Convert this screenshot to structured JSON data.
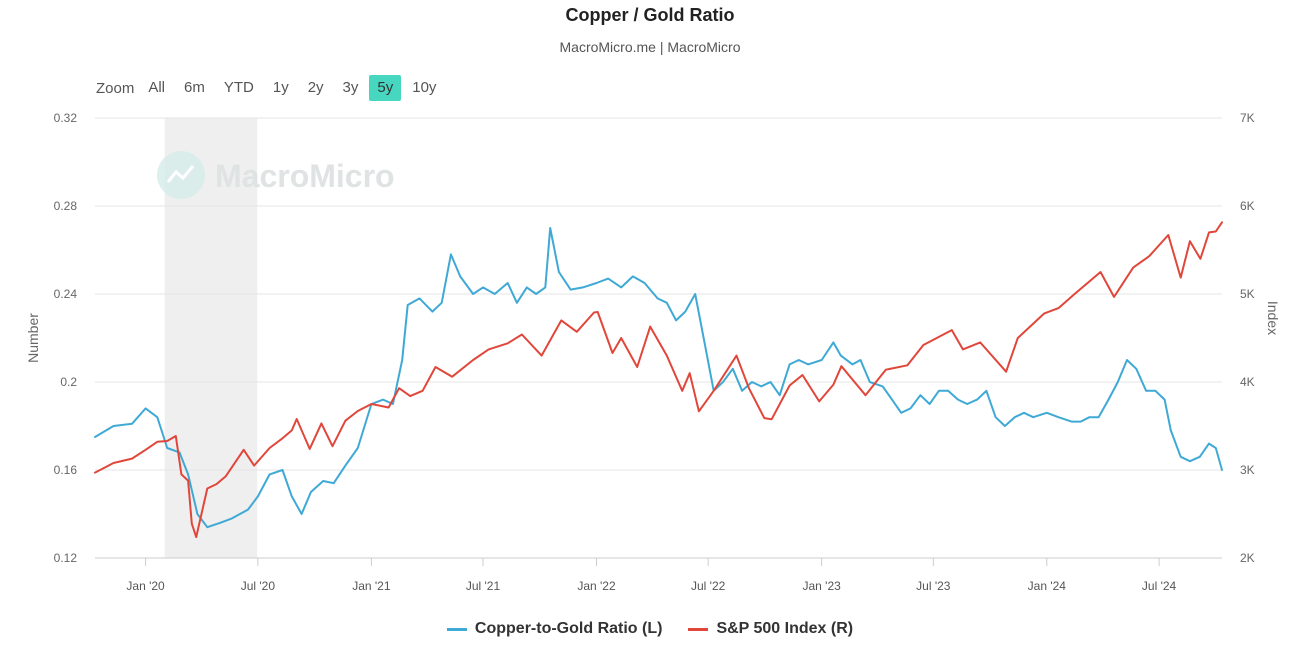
{
  "header": {
    "title": "Copper / Gold Ratio",
    "subtitle": "MacroMicro.me | MacroMicro"
  },
  "zoom": {
    "label": "Zoom",
    "buttons": [
      "All",
      "6m",
      "YTD",
      "1y",
      "2y",
      "3y",
      "5y",
      "10y"
    ],
    "active": "5y"
  },
  "watermark": "MacroMicro",
  "colors": {
    "copper_gold": "#3fa9d5",
    "sp500": "#e0473a",
    "active_zoom": "#47d7c0",
    "recession_band": "#efefef"
  },
  "chart_data": {
    "type": "line",
    "x_ticks": [
      "Jan '20",
      "Jul '20",
      "Jan '21",
      "Jul '21",
      "Jan '22",
      "Jul '22",
      "Jan '23",
      "Jul '23",
      "Jan '24",
      "Jul '24"
    ],
    "x_tick_dates": [
      "2020-01-01",
      "2020-07-01",
      "2021-01-01",
      "2021-07-01",
      "2022-01-01",
      "2022-07-01",
      "2023-01-01",
      "2023-07-01",
      "2024-01-01",
      "2024-07-01"
    ],
    "x_range": [
      "2019-10-11",
      "2024-10-11"
    ],
    "y_left": {
      "label": "Number",
      "range": [
        0.12,
        0.32
      ],
      "ticks": [
        "0.12",
        "0.16",
        "0.2",
        "0.24",
        "0.28",
        "0.32"
      ]
    },
    "y_right": {
      "label": "Index",
      "range": [
        2000,
        7000
      ],
      "ticks": [
        "2K",
        "3K",
        "4K",
        "5K",
        "6K",
        "7K"
      ]
    },
    "shaded_period": [
      "2020-02-01",
      "2020-06-30"
    ],
    "grid": true,
    "legend_position": "bottom-center",
    "series": [
      {
        "name": "Copper-to-Gold Ratio (L)",
        "axis": "left",
        "points": [
          [
            "2019-10-11",
            0.175
          ],
          [
            "2019-11-10",
            0.18
          ],
          [
            "2019-12-10",
            0.181
          ],
          [
            "2020-01-01",
            0.188
          ],
          [
            "2020-01-20",
            0.184
          ],
          [
            "2020-02-05",
            0.17
          ],
          [
            "2020-02-25",
            0.168
          ],
          [
            "2020-03-10",
            0.158
          ],
          [
            "2020-03-25",
            0.14
          ],
          [
            "2020-04-10",
            0.134
          ],
          [
            "2020-05-01",
            0.136
          ],
          [
            "2020-05-20",
            0.138
          ],
          [
            "2020-06-15",
            0.142
          ],
          [
            "2020-07-01",
            0.148
          ],
          [
            "2020-07-20",
            0.158
          ],
          [
            "2020-08-10",
            0.16
          ],
          [
            "2020-08-25",
            0.148
          ],
          [
            "2020-09-10",
            0.14
          ],
          [
            "2020-09-25",
            0.15
          ],
          [
            "2020-10-15",
            0.155
          ],
          [
            "2020-11-01",
            0.154
          ],
          [
            "2020-11-20",
            0.162
          ],
          [
            "2020-12-10",
            0.17
          ],
          [
            "2021-01-01",
            0.19
          ],
          [
            "2021-01-20",
            0.192
          ],
          [
            "2021-02-05",
            0.19
          ],
          [
            "2021-02-20",
            0.21
          ],
          [
            "2021-03-01",
            0.235
          ],
          [
            "2021-03-20",
            0.238
          ],
          [
            "2021-04-10",
            0.232
          ],
          [
            "2021-04-25",
            0.236
          ],
          [
            "2021-05-10",
            0.258
          ],
          [
            "2021-05-25",
            0.248
          ],
          [
            "2021-06-15",
            0.24
          ],
          [
            "2021-07-01",
            0.243
          ],
          [
            "2021-07-20",
            0.24
          ],
          [
            "2021-08-10",
            0.245
          ],
          [
            "2021-08-25",
            0.236
          ],
          [
            "2021-09-10",
            0.243
          ],
          [
            "2021-09-25",
            0.24
          ],
          [
            "2021-10-10",
            0.243
          ],
          [
            "2021-10-18",
            0.27
          ],
          [
            "2021-11-01",
            0.25
          ],
          [
            "2021-11-20",
            0.242
          ],
          [
            "2021-12-10",
            0.243
          ],
          [
            "2022-01-01",
            0.245
          ],
          [
            "2022-01-20",
            0.247
          ],
          [
            "2022-02-10",
            0.243
          ],
          [
            "2022-03-01",
            0.248
          ],
          [
            "2022-03-20",
            0.245
          ],
          [
            "2022-04-10",
            0.238
          ],
          [
            "2022-04-25",
            0.236
          ],
          [
            "2022-05-10",
            0.228
          ],
          [
            "2022-05-25",
            0.232
          ],
          [
            "2022-06-10",
            0.24
          ],
          [
            "2022-06-25",
            0.218
          ],
          [
            "2022-07-10",
            0.196
          ],
          [
            "2022-07-25",
            0.2
          ],
          [
            "2022-08-10",
            0.206
          ],
          [
            "2022-08-25",
            0.196
          ],
          [
            "2022-09-10",
            0.2
          ],
          [
            "2022-09-25",
            0.198
          ],
          [
            "2022-10-10",
            0.2
          ],
          [
            "2022-10-25",
            0.194
          ],
          [
            "2022-11-10",
            0.208
          ],
          [
            "2022-11-25",
            0.21
          ],
          [
            "2022-12-10",
            0.208
          ],
          [
            "2023-01-01",
            0.21
          ],
          [
            "2023-01-20",
            0.218
          ],
          [
            "2023-02-01",
            0.212
          ],
          [
            "2023-02-20",
            0.208
          ],
          [
            "2023-03-05",
            0.21
          ],
          [
            "2023-03-20",
            0.2
          ],
          [
            "2023-04-10",
            0.198
          ],
          [
            "2023-04-25",
            0.192
          ],
          [
            "2023-05-10",
            0.186
          ],
          [
            "2023-05-25",
            0.188
          ],
          [
            "2023-06-10",
            0.194
          ],
          [
            "2023-06-25",
            0.19
          ],
          [
            "2023-07-10",
            0.196
          ],
          [
            "2023-07-25",
            0.196
          ],
          [
            "2023-08-10",
            0.192
          ],
          [
            "2023-08-25",
            0.19
          ],
          [
            "2023-09-10",
            0.192
          ],
          [
            "2023-09-25",
            0.196
          ],
          [
            "2023-10-10",
            0.184
          ],
          [
            "2023-10-25",
            0.18
          ],
          [
            "2023-11-10",
            0.184
          ],
          [
            "2023-11-25",
            0.186
          ],
          [
            "2023-12-10",
            0.184
          ],
          [
            "2024-01-01",
            0.186
          ],
          [
            "2024-01-20",
            0.184
          ],
          [
            "2024-02-10",
            0.182
          ],
          [
            "2024-02-25",
            0.182
          ],
          [
            "2024-03-10",
            0.184
          ],
          [
            "2024-03-25",
            0.184
          ],
          [
            "2024-04-10",
            0.192
          ],
          [
            "2024-04-25",
            0.2
          ],
          [
            "2024-05-10",
            0.21
          ],
          [
            "2024-05-25",
            0.206
          ],
          [
            "2024-06-10",
            0.196
          ],
          [
            "2024-06-25",
            0.196
          ],
          [
            "2024-07-10",
            0.192
          ],
          [
            "2024-07-20",
            0.178
          ],
          [
            "2024-08-05",
            0.166
          ],
          [
            "2024-08-20",
            0.164
          ],
          [
            "2024-09-05",
            0.166
          ],
          [
            "2024-09-20",
            0.172
          ],
          [
            "2024-10-01",
            0.17
          ],
          [
            "2024-10-11",
            0.16
          ]
        ]
      },
      {
        "name": "S&P 500 Index (R)",
        "axis": "right",
        "points": [
          [
            "2019-10-11",
            2970
          ],
          [
            "2019-11-10",
            3080
          ],
          [
            "2019-12-10",
            3130
          ],
          [
            "2020-01-01",
            3230
          ],
          [
            "2020-01-20",
            3320
          ],
          [
            "2020-02-05",
            3330
          ],
          [
            "2020-02-19",
            3386
          ],
          [
            "2020-02-28",
            2950
          ],
          [
            "2020-03-10",
            2880
          ],
          [
            "2020-03-16",
            2390
          ],
          [
            "2020-03-23",
            2237
          ],
          [
            "2020-04-10",
            2790
          ],
          [
            "2020-04-25",
            2840
          ],
          [
            "2020-05-10",
            2930
          ],
          [
            "2020-06-08",
            3230
          ],
          [
            "2020-06-25",
            3050
          ],
          [
            "2020-07-20",
            3250
          ],
          [
            "2020-08-10",
            3360
          ],
          [
            "2020-08-25",
            3450
          ],
          [
            "2020-09-02",
            3580
          ],
          [
            "2020-09-23",
            3240
          ],
          [
            "2020-10-12",
            3530
          ],
          [
            "2020-10-30",
            3270
          ],
          [
            "2020-11-20",
            3560
          ],
          [
            "2020-12-10",
            3670
          ],
          [
            "2021-01-01",
            3750
          ],
          [
            "2021-01-29",
            3710
          ],
          [
            "2021-02-15",
            3930
          ],
          [
            "2021-03-05",
            3840
          ],
          [
            "2021-03-25",
            3900
          ],
          [
            "2021-04-15",
            4170
          ],
          [
            "2021-05-12",
            4060
          ],
          [
            "2021-06-15",
            4250
          ],
          [
            "2021-07-10",
            4370
          ],
          [
            "2021-08-10",
            4440
          ],
          [
            "2021-09-02",
            4540
          ],
          [
            "2021-10-04",
            4300
          ],
          [
            "2021-11-05",
            4700
          ],
          [
            "2021-11-30",
            4570
          ],
          [
            "2021-12-28",
            4790
          ],
          [
            "2022-01-03",
            4796
          ],
          [
            "2022-01-27",
            4330
          ],
          [
            "2022-02-10",
            4500
          ],
          [
            "2022-03-08",
            4170
          ],
          [
            "2022-03-29",
            4630
          ],
          [
            "2022-04-25",
            4300
          ],
          [
            "2022-05-20",
            3900
          ],
          [
            "2022-06-01",
            4100
          ],
          [
            "2022-06-16",
            3667
          ],
          [
            "2022-07-10",
            3900
          ],
          [
            "2022-08-16",
            4300
          ],
          [
            "2022-09-05",
            3930
          ],
          [
            "2022-09-30",
            3590
          ],
          [
            "2022-10-12",
            3577
          ],
          [
            "2022-11-10",
            3960
          ],
          [
            "2022-12-01",
            4080
          ],
          [
            "2022-12-28",
            3780
          ],
          [
            "2023-01-20",
            3970
          ],
          [
            "2023-02-02",
            4180
          ],
          [
            "2023-03-13",
            3850
          ],
          [
            "2023-04-15",
            4140
          ],
          [
            "2023-05-20",
            4190
          ],
          [
            "2023-06-15",
            4420
          ],
          [
            "2023-07-31",
            4590
          ],
          [
            "2023-08-18",
            4370
          ],
          [
            "2023-09-15",
            4450
          ],
          [
            "2023-10-27",
            4117
          ],
          [
            "2023-11-15",
            4500
          ],
          [
            "2023-12-28",
            4780
          ],
          [
            "2024-01-20",
            4840
          ],
          [
            "2024-02-15",
            5000
          ],
          [
            "2024-03-28",
            5250
          ],
          [
            "2024-04-19",
            4967
          ],
          [
            "2024-05-20",
            5300
          ],
          [
            "2024-06-15",
            5430
          ],
          [
            "2024-07-16",
            5670
          ],
          [
            "2024-08-05",
            5186
          ],
          [
            "2024-08-20",
            5600
          ],
          [
            "2024-09-06",
            5400
          ],
          [
            "2024-09-20",
            5700
          ],
          [
            "2024-10-01",
            5710
          ],
          [
            "2024-10-11",
            5815
          ]
        ]
      }
    ]
  }
}
